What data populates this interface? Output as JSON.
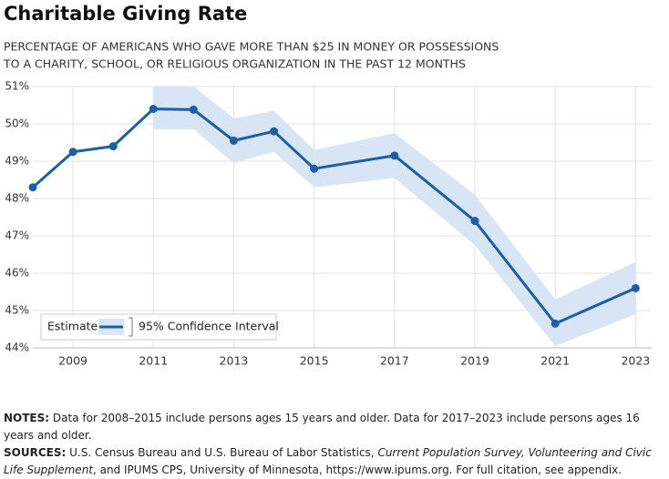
{
  "chart_data": {
    "type": "line",
    "title": "Charitable Giving Rate",
    "subtitle_lines": [
      "PERCENTAGE OF AMERICANS WHO GAVE MORE THAN $25 IN MONEY OR POSSESSIONS",
      "TO A CHARITY, SCHOOL, OR RELIGIOUS ORGANIZATION IN THE PAST 12 MONTHS"
    ],
    "x": [
      2008,
      2009,
      2010,
      2011,
      2012,
      2013,
      2014,
      2015,
      2017,
      2019,
      2021,
      2023
    ],
    "series": [
      {
        "name": "Estimate",
        "color": "#1b5fa8",
        "values": [
          48.3,
          49.25,
          49.4,
          50.4,
          50.38,
          49.55,
          49.8,
          48.8,
          49.15,
          47.4,
          44.65,
          45.6
        ]
      }
    ],
    "band": {
      "name": "95% Confidence Interval",
      "color": "#d7e5f4",
      "lower": [
        null,
        null,
        null,
        49.85,
        49.85,
        48.95,
        49.25,
        48.3,
        48.55,
        46.75,
        44.05,
        44.9
      ],
      "upper": [
        null,
        null,
        null,
        51.0,
        51.0,
        50.15,
        50.35,
        49.3,
        49.75,
        48.1,
        45.3,
        46.3
      ]
    },
    "xlim": [
      2008,
      2023.4
    ],
    "xticks": [
      2009,
      2011,
      2013,
      2015,
      2017,
      2019,
      2021,
      2023
    ],
    "ylim": [
      44,
      51
    ],
    "yticks": [
      {
        "value": 44,
        "label": "44%"
      },
      {
        "value": 45,
        "label": "45%"
      },
      {
        "value": 46,
        "label": "46%"
      },
      {
        "value": 47,
        "label": "47%"
      },
      {
        "value": 48,
        "label": "48%"
      },
      {
        "value": 49,
        "label": "49%"
      },
      {
        "value": 50,
        "label": "50%"
      },
      {
        "value": 51,
        "label": "51%"
      }
    ],
    "grid": true,
    "legend": "bottom-left"
  },
  "notes": {
    "label": "NOTES:",
    "text": "Data for 2008–2015 include persons ages 15 years and older. Data for 2017–2023 include persons ages 16 years and older."
  },
  "sources": {
    "label": "SOURCES:",
    "parts": [
      {
        "text": "U.S. Census Bureau and U.S. Bureau of Labor Statistics,",
        "italic": false
      },
      {
        "text": "Current Population Survey, Volunteering and Civic Life Supplement",
        "italic": true
      },
      {
        "text": ", and IPUMS CPS, University of Minnesota, https://www.ipums.org. For full citation, see appendix.",
        "italic": false
      }
    ]
  }
}
